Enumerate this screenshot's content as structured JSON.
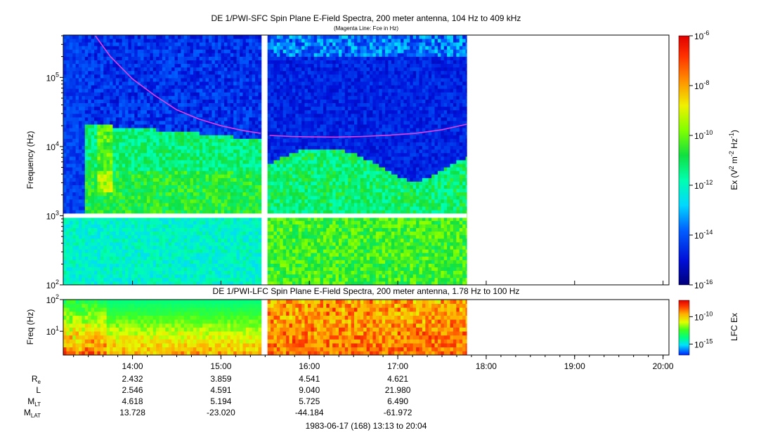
{
  "chart_data": [
    {
      "type": "heatmap",
      "title": "DE 1/PWI-SFC  Spin Plane E-Field Spectra, 200 meter antenna, 104 Hz to 409 kHz",
      "subtitle": "(Magenta Line: Fce in Hz)",
      "ylabel": "Frequency (Hz)",
      "y_scale": "log",
      "ylim": [
        100,
        409000
      ],
      "y_ticks": [
        {
          "value": 100,
          "base": "10",
          "exp": "2"
        },
        {
          "value": 1000,
          "base": "10",
          "exp": "3"
        },
        {
          "value": 10000,
          "base": "10",
          "exp": "4"
        },
        {
          "value": 100000,
          "base": "10",
          "exp": "5"
        }
      ],
      "colorbar": {
        "label_parts": [
          "Ex (V",
          "2",
          " m",
          "-2",
          " Hz",
          "-1",
          ")"
        ],
        "scale": "log",
        "range": [
          1e-16,
          1e-06
        ],
        "ticks": [
          {
            "value": 1e-06,
            "base": "10",
            "exp": "-6"
          },
          {
            "value": 1e-08,
            "base": "10",
            "exp": "-8"
          },
          {
            "value": 1e-10,
            "base": "10",
            "exp": "-10"
          },
          {
            "value": 1e-12,
            "base": "10",
            "exp": "-12"
          },
          {
            "value": 1e-14,
            "base": "10",
            "exp": "-14"
          },
          {
            "value": 1e-16,
            "base": "10",
            "exp": "-16"
          }
        ]
      },
      "fce_line": {
        "color": "#e040e0",
        "segments": [
          {
            "x": [
              13.58,
              13.75,
              14.0,
              14.25,
              14.5,
              14.75,
              15.0,
              15.25,
              15.45
            ],
            "y": [
              400000,
              200000,
              95000,
              55000,
              34000,
              25000,
              20000,
              17000,
              15500
            ]
          },
          {
            "x": [
              15.55,
              15.8,
              16.0,
              16.3,
              16.6,
              16.9,
              17.2,
              17.5,
              17.78
            ],
            "y": [
              14500,
              14000,
              13800,
              13700,
              14000,
              14600,
              15500,
              17500,
              21000
            ]
          }
        ]
      },
      "data_gaps": [
        "15.47-15.52 UT",
        "1000 Hz band"
      ]
    },
    {
      "type": "heatmap",
      "title": "DE 1/PWI-LFC  Spin Plane E-Field Spectra, 200 meter antenna, 1.78 Hz to 100 Hz",
      "ylabel": "Freq (Hz)",
      "y_scale": "log",
      "ylim": [
        1.78,
        100
      ],
      "y_ticks": [
        {
          "value": 100,
          "base": "10",
          "exp": "2"
        },
        {
          "value": 10,
          "base": "10",
          "exp": "1"
        }
      ],
      "colorbar": {
        "label": "LFC Ex",
        "scale": "log",
        "ticks": [
          {
            "value": 1e-10,
            "base": "10",
            "exp": "-10"
          },
          {
            "value": 1e-15,
            "base": "10",
            "exp": "-15"
          }
        ]
      }
    }
  ],
  "x_axis": {
    "range_hours": [
      13.2167,
      20.0667
    ],
    "ticks": [
      {
        "value": 14,
        "label": "14:00"
      },
      {
        "value": 15,
        "label": "15:00"
      },
      {
        "value": 16,
        "label": "16:00"
      },
      {
        "value": 17,
        "label": "17:00"
      },
      {
        "value": 18,
        "label": "18:00"
      },
      {
        "value": 19,
        "label": "19:00"
      },
      {
        "value": 20,
        "label": "20:00"
      }
    ],
    "data_end_hours": 17.78,
    "gap_hours": [
      15.47,
      15.52
    ]
  },
  "ephemeris": {
    "rows": [
      {
        "label": "R",
        "sub": "e",
        "values": [
          "2.432",
          "3.859",
          "4.541",
          "4.621"
        ]
      },
      {
        "label": "L",
        "sub": "",
        "values": [
          "2.546",
          "4.591",
          "9.040",
          "21.980"
        ]
      },
      {
        "label": "M",
        "sub": "LT",
        "values": [
          "4.618",
          "5.194",
          "5.725",
          "6.490"
        ]
      },
      {
        "label": "M",
        "sub": "LAT",
        "values": [
          "13.728",
          "-23.020",
          "-44.184",
          "-61.972"
        ]
      }
    ]
  },
  "footer": "1983-06-17 (168) 13:13 to 20:04"
}
